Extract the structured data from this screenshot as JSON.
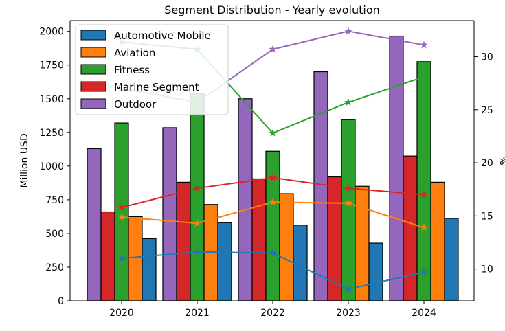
{
  "chart_data": {
    "type": "bar",
    "title": "Segment Distribution - Yearly evolution",
    "xlabel": "",
    "ylabel": "Million USD",
    "y2label": "%",
    "categories": [
      "2020",
      "2021",
      "2022",
      "2023",
      "2024"
    ],
    "ylim": [
      0,
      2080
    ],
    "y2lim": [
      7,
      33.4
    ],
    "yticks": [
      0,
      250,
      500,
      750,
      1000,
      1250,
      1500,
      1750,
      2000
    ],
    "y2ticks": [
      10,
      15,
      20,
      25,
      30
    ],
    "legend_position": "top-left",
    "grid": false,
    "series": [
      {
        "name": "Outdoor",
        "color": "#9467bd",
        "values": [
          1130,
          1285,
          1500,
          1700,
          1965
        ]
      },
      {
        "name": "Marine Segment",
        "color": "#d62728",
        "values": [
          660,
          880,
          905,
          920,
          1075
        ]
      },
      {
        "name": "Fitness",
        "color": "#2ca02c",
        "values": [
          1320,
          1540,
          1110,
          1345,
          1775
        ]
      },
      {
        "name": "Aviation",
        "color": "#ff7f0e",
        "values": [
          625,
          715,
          795,
          850,
          880
        ]
      },
      {
        "name": "Automotive Mobile",
        "color": "#1f77b4",
        "values": [
          462,
          580,
          562,
          428,
          612
        ]
      }
    ],
    "percent_series": [
      {
        "name": "Automotive Mobile",
        "color": "#1f77b4",
        "values": [
          11.0,
          11.6,
          11.5,
          8.1,
          9.7
        ]
      },
      {
        "name": "Aviation",
        "color": "#ff7f0e",
        "values": [
          14.9,
          14.3,
          16.3,
          16.2,
          13.9
        ]
      },
      {
        "name": "Fitness",
        "color": "#2ca02c",
        "values": [
          31.4,
          30.7,
          22.8,
          25.7,
          28.1
        ]
      },
      {
        "name": "Marine Segment",
        "color": "#d62728",
        "values": [
          15.8,
          17.6,
          18.6,
          17.6,
          17.0
        ]
      },
      {
        "name": "Outdoor",
        "color": "#9467bd",
        "values": [
          27.0,
          25.7,
          30.7,
          32.4,
          31.1
        ]
      }
    ],
    "legend": [
      "Automotive Mobile",
      "Aviation",
      "Fitness",
      "Marine Segment",
      "Outdoor"
    ]
  }
}
